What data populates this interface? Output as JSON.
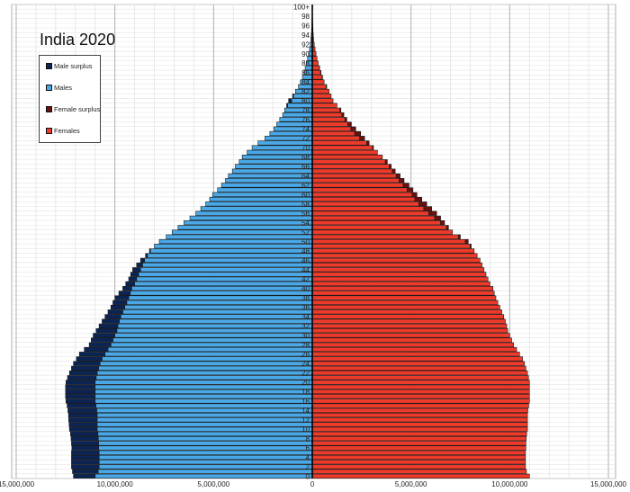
{
  "chart_data": {
    "type": "bar",
    "subtype": "population-pyramid",
    "title": "India 2020",
    "xlabel": "",
    "ylabel": "",
    "xlim": [
      -15000000,
      15000000
    ],
    "x_tick_values": [
      -15000000,
      -10000000,
      -5000000,
      0,
      5000000,
      10000000,
      15000000
    ],
    "x_tick_labels": [
      "15,000,000",
      "10,000,000",
      "5,000,000",
      "0",
      "5,000,000",
      "10,000,000",
      "15,000,000"
    ],
    "age_tick_labels": [
      "0",
      "2",
      "4",
      "6",
      "8",
      "10",
      "12",
      "14",
      "16",
      "18",
      "20",
      "22",
      "24",
      "26",
      "28",
      "30",
      "32",
      "34",
      "36",
      "38",
      "40",
      "42",
      "44",
      "46",
      "48",
      "50",
      "52",
      "54",
      "56",
      "58",
      "60",
      "62",
      "64",
      "66",
      "68",
      "70",
      "72",
      "74",
      "76",
      "78",
      "80",
      "82",
      "84",
      "86",
      "88",
      "90",
      "92",
      "94",
      "96",
      "98",
      "100+"
    ],
    "legend": {
      "placement": "top-left",
      "entries": [
        {
          "name": "Male surplus",
          "color": "#0b2454"
        },
        {
          "name": "Males",
          "color": "#4aa8e6"
        },
        {
          "name": "Female surplus",
          "color": "#6b0f0f"
        },
        {
          "name": "Females",
          "color": "#ee3a2a"
        }
      ]
    },
    "grid": true,
    "categories_note": "single-year ages 0 to 100+ (101 rows, bottom to top)",
    "series": [
      {
        "name": "Males",
        "values": [
          12100000,
          12150000,
          12200000,
          12200000,
          12200000,
          12200000,
          12180000,
          12200000,
          12220000,
          12250000,
          12300000,
          12320000,
          12340000,
          12350000,
          12380000,
          12420000,
          12480000,
          12500000,
          12500000,
          12500000,
          12480000,
          12400000,
          12300000,
          12200000,
          12100000,
          11950000,
          11800000,
          11550000,
          11300000,
          11200000,
          11100000,
          10950000,
          10800000,
          10650000,
          10500000,
          10350000,
          10200000,
          10100000,
          10000000,
          9800000,
          9600000,
          9450000,
          9300000,
          9200000,
          9100000,
          8900000,
          8700000,
          8450000,
          8250000,
          8000000,
          7750000,
          7400000,
          7100000,
          6800000,
          6500000,
          6200000,
          5900000,
          5650000,
          5400000,
          5200000,
          5050000,
          4800000,
          4600000,
          4400000,
          4250000,
          4050000,
          3900000,
          3700000,
          3550000,
          3300000,
          3050000,
          2750000,
          2400000,
          2150000,
          1950000,
          1800000,
          1650000,
          1500000,
          1400000,
          1300000,
          1200000,
          1000000,
          850000,
          700000,
          600000,
          500000,
          420000,
          360000,
          300000,
          240000,
          190000,
          140000,
          100000,
          70000,
          50000,
          35000,
          25000,
          17000,
          12000,
          8000,
          12000
        ]
      },
      {
        "name": "Females",
        "values": [
          11000000,
          10850000,
          10800000,
          10800000,
          10800000,
          10800000,
          10820000,
          10820000,
          10840000,
          10860000,
          10900000,
          10900000,
          10900000,
          10900000,
          10920000,
          10960000,
          11000000,
          11000000,
          11000000,
          11000000,
          11000000,
          10950000,
          10900000,
          10820000,
          10750000,
          10650000,
          10500000,
          10350000,
          10200000,
          10100000,
          10000000,
          9900000,
          9850000,
          9780000,
          9700000,
          9600000,
          9500000,
          9400000,
          9300000,
          9220000,
          9150000,
          9000000,
          8900000,
          8800000,
          8700000,
          8600000,
          8500000,
          8350000,
          8200000,
          8050000,
          7900000,
          7500000,
          7100000,
          6900000,
          6700000,
          6500000,
          6300000,
          6050000,
          5800000,
          5550000,
          5300000,
          5100000,
          4900000,
          4650000,
          4450000,
          4200000,
          4000000,
          3800000,
          3550000,
          3300000,
          3100000,
          2880000,
          2650000,
          2450000,
          2200000,
          1980000,
          1750000,
          1600000,
          1450000,
          1250000,
          1050000,
          950000,
          850000,
          730000,
          600000,
          520000,
          440000,
          370000,
          300000,
          240000,
          190000,
          140000,
          100000,
          70000,
          50000,
          35000,
          25000,
          17000,
          12000,
          8000,
          14000
        ]
      }
    ]
  }
}
